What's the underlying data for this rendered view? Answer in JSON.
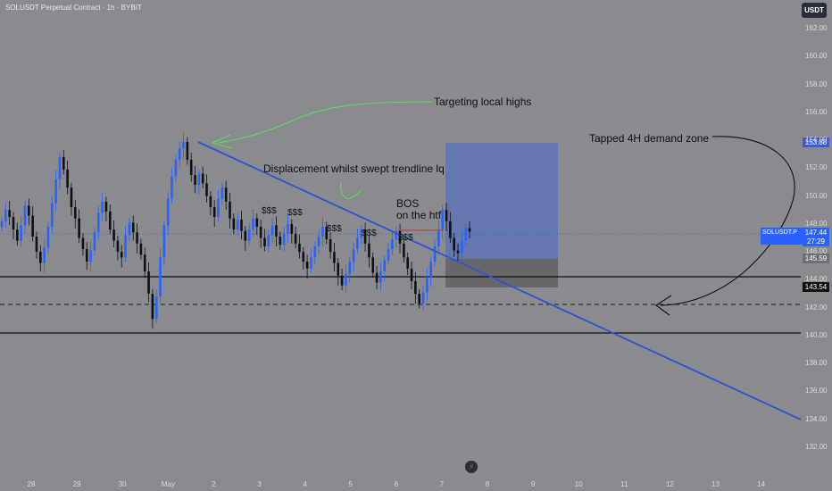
{
  "header": {
    "symbol_title": "SOLUSDT Perpetual Contract · 1h · BYBIT",
    "currency_label": "USDT"
  },
  "annotations": {
    "targeting": "Targeting local highs",
    "demand": "Tapped 4H demand zone",
    "displacement": "Displacement whilst swept trendline lq",
    "bos_line1": "BOS",
    "bos_line2": "on the htf",
    "liquidity": [
      "$$$",
      "$$$",
      "$$$",
      "$$$",
      "$$$"
    ]
  },
  "price_labels": {
    "symbol_short": "SOLUSDT.P",
    "last_price": "147.44",
    "countdown": "27:29",
    "zone_top": "153.88",
    "zone_bottom": "145.59",
    "support": "143.54"
  },
  "colors": {
    "background": "#898b8e",
    "trendline": "#2f55d4",
    "candle_up": "#2962ff",
    "candle_down": "#101010",
    "demand_box": "#5a72b8",
    "arrow_green": "#5cdd5c"
  },
  "chart_data": {
    "type": "candlestick",
    "title": "SOLUSDT Perpetual Contract · 1h · BYBIT",
    "ylim": [
      131,
      164
    ],
    "y_ticks": [
      162,
      160,
      158,
      156,
      154,
      152,
      150,
      148,
      146,
      144,
      142,
      140,
      138,
      136,
      134,
      132
    ],
    "y_tick_labels": [
      "162.00",
      "160.00",
      "158.00",
      "156.00",
      "154.00",
      "152.00",
      "150.00",
      "148.00",
      "146.00",
      "144.00",
      "142.00",
      "140.00",
      "138.00",
      "136.00",
      "134.00",
      "132.00"
    ],
    "x_tick_labels": [
      "28",
      "29",
      "30",
      "May",
      "2",
      "3",
      "4",
      "5",
      "6",
      "7",
      "8",
      "9",
      "10",
      "11",
      "12",
      "13",
      "14"
    ],
    "last_price": 147.44,
    "close_series": [
      148.2,
      149.0,
      148.5,
      147.6,
      146.8,
      147.9,
      149.3,
      148.6,
      147.1,
      146.0,
      145.2,
      146.3,
      147.8,
      149.5,
      151.2,
      152.8,
      151.9,
      150.6,
      149.2,
      148.4,
      147.0,
      146.2,
      145.3,
      146.1,
      147.4,
      148.8,
      149.6,
      148.9,
      147.6,
      146.8,
      146.0,
      145.6,
      147.2,
      148.1,
      147.4,
      146.6,
      145.8,
      144.6,
      143.0,
      141.2,
      142.8,
      145.6,
      147.9,
      149.8,
      151.4,
      152.6,
      153.4,
      153.88,
      152.6,
      151.5,
      150.8,
      151.6,
      150.9,
      150.0,
      149.2,
      148.5,
      149.8,
      150.6,
      149.6,
      148.4,
      147.6,
      148.3,
      147.5,
      146.8,
      147.6,
      148.4,
      147.8,
      147.0,
      146.4,
      147.2,
      147.9,
      147.1,
      146.5,
      147.3,
      148.0,
      147.3,
      146.6,
      146.0,
      145.3,
      144.8,
      145.6,
      146.4,
      147.1,
      147.8,
      146.9,
      146.0,
      145.2,
      144.3,
      143.6,
      144.4,
      145.3,
      146.2,
      147.0,
      147.6,
      146.6,
      145.6,
      144.5,
      143.8,
      144.6,
      145.4,
      146.2,
      146.9,
      147.5,
      146.6,
      145.6,
      144.8,
      143.9,
      143.0,
      142.3,
      143.1,
      144.2,
      145.3,
      146.4,
      147.6,
      149.0,
      148.2,
      147.0,
      146.1,
      145.9,
      146.8,
      147.7,
      147.44
    ],
    "trendline": {
      "from": {
        "x": "1 May",
        "y": 153.9
      },
      "to": {
        "x": "14 May",
        "y": 134.3
      }
    },
    "demand_zone": {
      "top": 153.88,
      "bottom": 145.59
    },
    "gray_zone": {
      "top": 145.59,
      "bottom": 143.5
    },
    "horizontal_levels": [
      {
        "price": 144.0,
        "style": "solid"
      },
      {
        "price": 142.1,
        "style": "dashed"
      },
      {
        "price": 140.1,
        "style": "solid"
      }
    ],
    "annotations": [
      "Targeting local highs",
      "Tapped 4H demand zone",
      "Displacement whilst swept trendline lq",
      "BOS on the htf",
      "$$$"
    ]
  }
}
